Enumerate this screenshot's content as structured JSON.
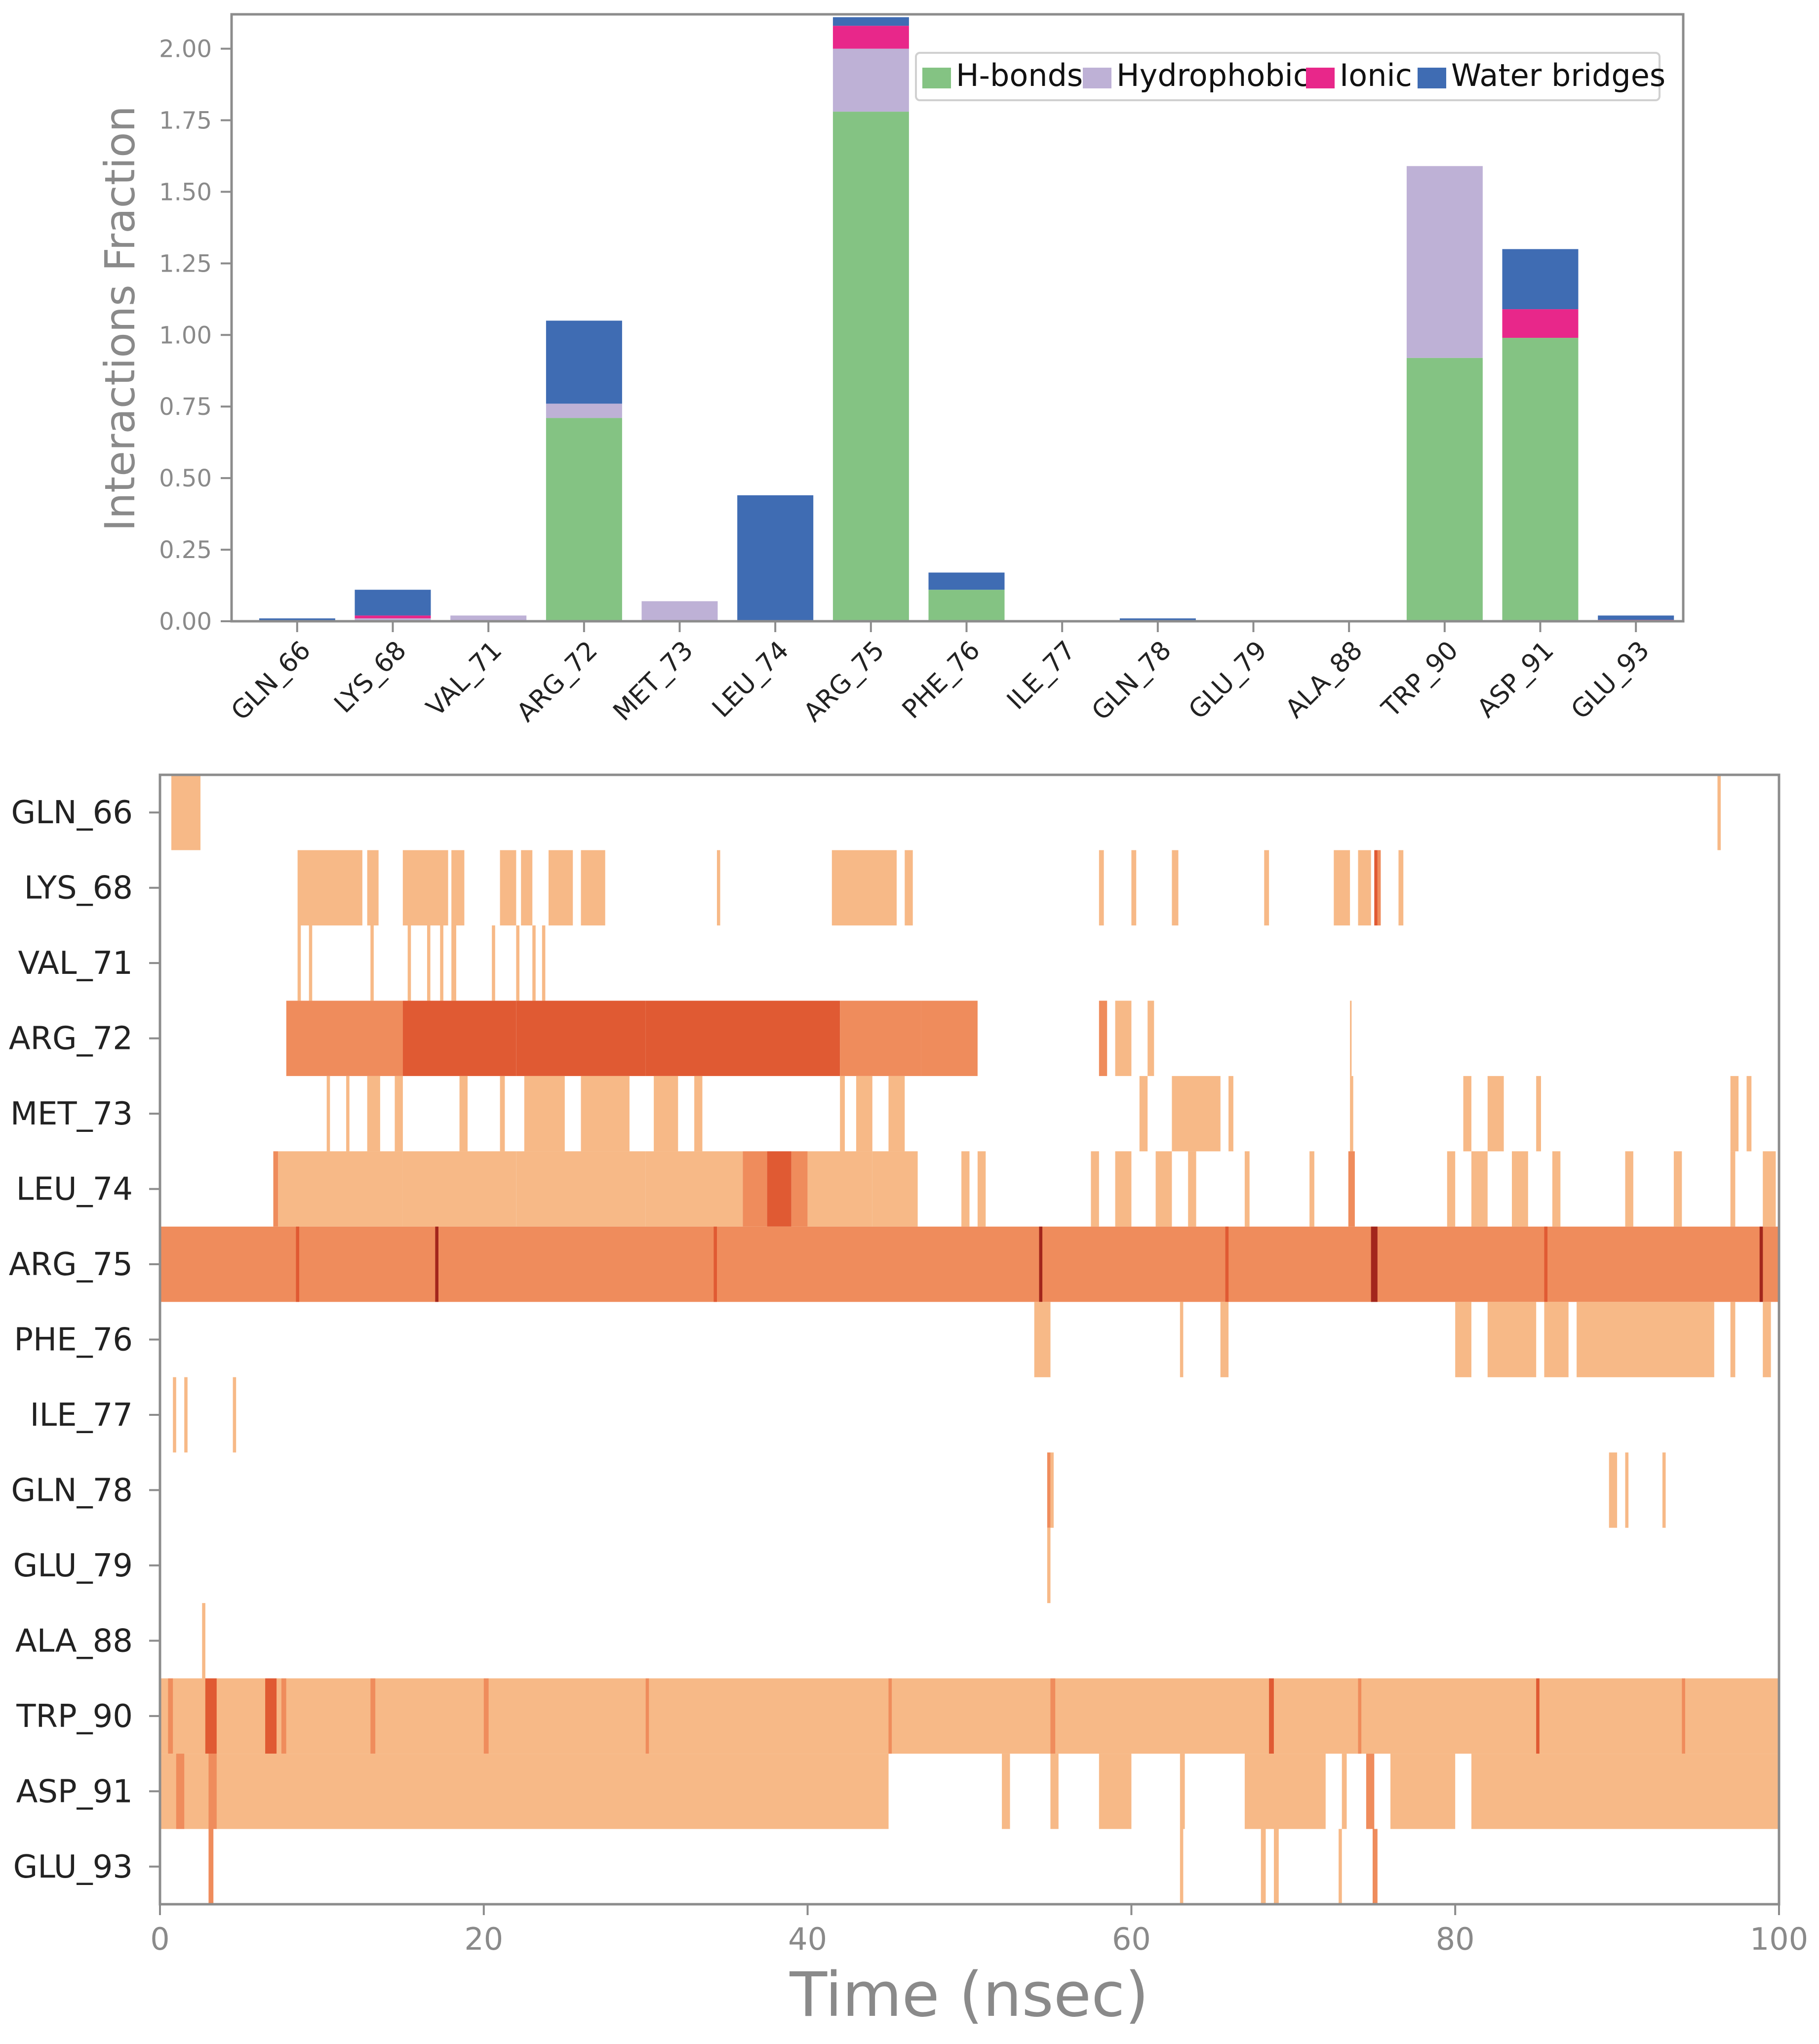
{
  "chart_data": [
    {
      "type": "bar",
      "stacked": true,
      "ylabel": "Interactions Fraction",
      "ylim": [
        0,
        2.12
      ],
      "yticks": [
        "0.00",
        "0.25",
        "0.50",
        "0.75",
        "1.00",
        "1.25",
        "1.50",
        "1.75",
        "2.00"
      ],
      "legend_position": "top-right",
      "categories": [
        "GLN_66",
        "LYS_68",
        "VAL_71",
        "ARG_72",
        "MET_73",
        "LEU_74",
        "ARG_75",
        "PHE_76",
        "ILE_77",
        "GLN_78",
        "GLU_79",
        "ALA_88",
        "TRP_90",
        "ASP_91",
        "GLU_93"
      ],
      "series": [
        {
          "name": "H-bonds",
          "color": "#84c383",
          "values": [
            0,
            0,
            0,
            0.71,
            0,
            0,
            1.78,
            0.11,
            0,
            0,
            0,
            0,
            0.92,
            0.99,
            0
          ]
        },
        {
          "name": "Hydrophobic",
          "color": "#beb1d6",
          "values": [
            0,
            0.01,
            0.02,
            0.05,
            0.07,
            0,
            0.22,
            0,
            0,
            0,
            0,
            0,
            0.67,
            0,
            0
          ]
        },
        {
          "name": "Ionic",
          "color": "#e8278a",
          "values": [
            0,
            0.01,
            0,
            0,
            0,
            0,
            0.08,
            0,
            0,
            0,
            0,
            0,
            0,
            0.1,
            0.005
          ]
        },
        {
          "name": "Water bridges",
          "color": "#3f6cb3",
          "values": [
            0.01,
            0.09,
            0,
            0.29,
            0,
            0.44,
            0.03,
            0.06,
            0,
            0.01,
            0,
            0,
            0,
            0.21,
            0.015
          ]
        }
      ]
    },
    {
      "type": "heatmap",
      "xlabel": "Time (nsec)",
      "xlim": [
        0,
        100
      ],
      "xticks": [
        "0",
        "20",
        "40",
        "60",
        "80",
        "100"
      ],
      "colors": {
        "light": "#f7b987",
        "medium": "#ef8c5c",
        "dark": "#e05a33",
        "darkest": "#a3261c"
      },
      "rows": [
        {
          "name": "GLN_66",
          "segments": [
            [
              0.7,
              2.5,
              1
            ],
            [
              96.2,
              96.4,
              1
            ]
          ]
        },
        {
          "name": "LYS_68",
          "segments": [
            [
              8.5,
              12.5,
              1
            ],
            [
              12.8,
              13.5,
              1
            ],
            [
              15,
              17.8,
              1
            ],
            [
              18,
              18.8,
              1
            ],
            [
              21,
              22,
              1
            ],
            [
              22.3,
              23,
              1
            ],
            [
              24,
              25.5,
              1
            ],
            [
              26,
              27.5,
              1
            ],
            [
              34.4,
              34.6,
              1
            ],
            [
              41.5,
              45.5,
              1
            ],
            [
              46,
              46.5,
              1
            ],
            [
              58,
              58.3,
              1
            ],
            [
              60,
              60.3,
              1
            ],
            [
              62.5,
              62.9,
              1
            ],
            [
              68.2,
              68.5,
              1
            ],
            [
              72.5,
              73.5,
              1
            ],
            [
              74,
              74.8,
              1
            ],
            [
              75,
              75.2,
              3
            ],
            [
              75.2,
              75.4,
              2
            ],
            [
              76.5,
              76.8,
              1
            ]
          ]
        },
        {
          "name": "VAL_71",
          "segments": [
            [
              8.5,
              8.7,
              1
            ],
            [
              9.2,
              9.4,
              1
            ],
            [
              13,
              13.2,
              1
            ],
            [
              15.3,
              15.5,
              1
            ],
            [
              16.5,
              16.7,
              1
            ],
            [
              17.3,
              17.5,
              1
            ],
            [
              18,
              18.3,
              1
            ],
            [
              20.5,
              20.7,
              1
            ],
            [
              22,
              22.2,
              1
            ],
            [
              23,
              23.2,
              1
            ],
            [
              23.6,
              23.8,
              1
            ]
          ]
        },
        {
          "name": "ARG_72",
          "segments": [
            [
              7.8,
              15,
              2
            ],
            [
              15,
              22,
              3
            ],
            [
              22,
              30,
              3
            ],
            [
              30,
              38,
              3
            ],
            [
              38,
              42,
              3
            ],
            [
              42,
              47,
              2
            ],
            [
              47,
              50.5,
              2
            ],
            [
              58,
              58.5,
              2
            ],
            [
              59,
              60,
              1
            ],
            [
              61,
              61.4,
              1
            ],
            [
              73.5,
              73.6,
              1
            ]
          ]
        },
        {
          "name": "MET_73",
          "segments": [
            [
              10.3,
              10.5,
              1
            ],
            [
              11.5,
              11.7,
              1
            ],
            [
              12.8,
              13.6,
              1
            ],
            [
              14.5,
              15,
              1
            ],
            [
              18.5,
              19,
              1
            ],
            [
              21,
              21.3,
              1
            ],
            [
              22.5,
              25,
              1
            ],
            [
              26,
              29,
              1
            ],
            [
              30.5,
              32,
              1
            ],
            [
              33,
              33.5,
              1
            ],
            [
              42,
              42.3,
              1
            ],
            [
              43,
              44,
              1
            ],
            [
              45,
              46,
              1
            ],
            [
              60.5,
              61,
              1
            ],
            [
              62.5,
              65.5,
              1
            ],
            [
              66,
              66.3,
              1
            ],
            [
              73.5,
              73.7,
              1
            ],
            [
              80.5,
              81,
              1
            ],
            [
              82,
              83,
              1
            ],
            [
              85,
              85.3,
              1
            ],
            [
              97,
              97.5,
              1
            ],
            [
              98,
              98.3,
              1
            ]
          ]
        },
        {
          "name": "LEU_74",
          "segments": [
            [
              7,
              7.3,
              2
            ],
            [
              7.3,
              15,
              1
            ],
            [
              15,
              22,
              1
            ],
            [
              22,
              30,
              1
            ],
            [
              30,
              36,
              1
            ],
            [
              36,
              37.5,
              2
            ],
            [
              37.5,
              39,
              3
            ],
            [
              39,
              40,
              2
            ],
            [
              40,
              44,
              1
            ],
            [
              44,
              46.8,
              1
            ],
            [
              49.5,
              50,
              1
            ],
            [
              50.5,
              51,
              1
            ],
            [
              57.5,
              58,
              1
            ],
            [
              59,
              60,
              1
            ],
            [
              61.5,
              62.5,
              1
            ],
            [
              63.5,
              64,
              1
            ],
            [
              67,
              67.3,
              1
            ],
            [
              71,
              71.3,
              1
            ],
            [
              73.4,
              73.8,
              2
            ],
            [
              79.5,
              80,
              1
            ],
            [
              81,
              82,
              1
            ],
            [
              83.5,
              84.5,
              1
            ],
            [
              86,
              86.5,
              1
            ],
            [
              90.5,
              91,
              1
            ],
            [
              93.5,
              94,
              1
            ],
            [
              97,
              97.3,
              1
            ],
            [
              99,
              99.8,
              1
            ]
          ]
        },
        {
          "name": "ARG_75",
          "segments": [
            [
              0,
              100,
              2
            ],
            [
              8.4,
              8.6,
              3
            ],
            [
              17,
              17.2,
              4
            ],
            [
              34.2,
              34.4,
              3
            ],
            [
              54.3,
              54.5,
              4
            ],
            [
              65.8,
              66,
              3
            ],
            [
              74.8,
              75.2,
              4
            ],
            [
              85.5,
              85.7,
              3
            ],
            [
              98.8,
              99,
              4
            ]
          ]
        },
        {
          "name": "PHE_76",
          "segments": [
            [
              54,
              55,
              1
            ],
            [
              63,
              63.2,
              1
            ],
            [
              65.5,
              66,
              1
            ],
            [
              80,
              81,
              1
            ],
            [
              82,
              85,
              1
            ],
            [
              85.5,
              87,
              1
            ],
            [
              87.5,
              96,
              1
            ],
            [
              97,
              97.3,
              1
            ],
            [
              99,
              99.5,
              1
            ]
          ]
        },
        {
          "name": "ILE_77",
          "segments": [
            [
              0.8,
              1,
              1
            ],
            [
              1.5,
              1.7,
              1
            ],
            [
              4.5,
              4.7,
              1
            ]
          ]
        },
        {
          "name": "GLN_78",
          "segments": [
            [
              54.8,
              55,
              2
            ],
            [
              55,
              55.2,
              1
            ],
            [
              89.5,
              90,
              1
            ],
            [
              90.5,
              90.7,
              1
            ],
            [
              92.8,
              93,
              1
            ]
          ]
        },
        {
          "name": "GLU_79",
          "segments": [
            [
              54.8,
              55,
              1
            ]
          ]
        },
        {
          "name": "ALA_88",
          "segments": [
            [
              2.6,
              2.8,
              1
            ]
          ]
        },
        {
          "name": "TRP_90",
          "segments": [
            [
              0,
              100,
              1
            ],
            [
              0.5,
              0.8,
              2
            ],
            [
              2.8,
              3.5,
              3
            ],
            [
              6.5,
              7.2,
              3
            ],
            [
              7.5,
              7.8,
              2
            ],
            [
              13,
              13.3,
              2
            ],
            [
              20,
              20.3,
              2
            ],
            [
              30,
              30.2,
              2
            ],
            [
              45,
              45.2,
              2
            ],
            [
              55,
              55.3,
              2
            ],
            [
              68.5,
              68.8,
              3
            ],
            [
              74,
              74.2,
              2
            ],
            [
              85,
              85.2,
              3
            ],
            [
              94,
              94.2,
              2
            ]
          ]
        },
        {
          "name": "ASP_91",
          "segments": [
            [
              0,
              5,
              1
            ],
            [
              1,
              1.5,
              2
            ],
            [
              3,
              3.5,
              2
            ],
            [
              5,
              45,
              1
            ],
            [
              52,
              52.5,
              1
            ],
            [
              55,
              55.5,
              1
            ],
            [
              58,
              60,
              1
            ],
            [
              63,
              63.3,
              1
            ],
            [
              67,
              72,
              1
            ],
            [
              73,
              73.3,
              1
            ],
            [
              74.5,
              75,
              2
            ],
            [
              76,
              80,
              1
            ],
            [
              81,
              100,
              1
            ]
          ]
        },
        {
          "name": "GLU_93",
          "segments": [
            [
              3,
              3.3,
              2
            ],
            [
              63,
              63.2,
              1
            ],
            [
              68,
              68.3,
              1
            ],
            [
              68.8,
              69.1,
              1
            ],
            [
              72.8,
              73,
              1
            ],
            [
              74.9,
              75.2,
              2
            ]
          ]
        }
      ]
    }
  ]
}
